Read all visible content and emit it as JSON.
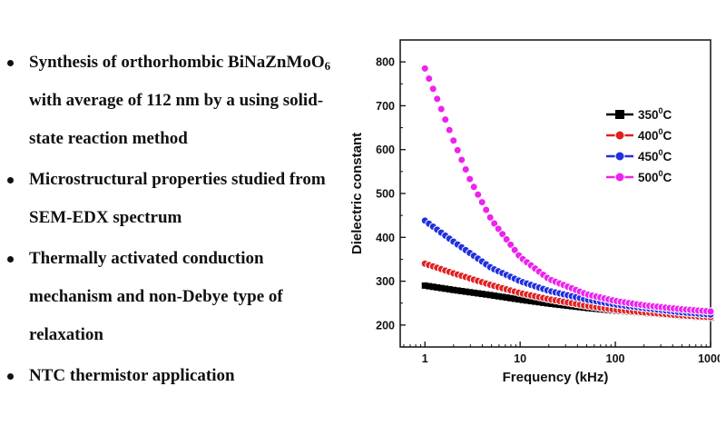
{
  "bullets": [
    {
      "lines": [
        "Synthesis of orthorhombic BiNaZnMoO",
        "with average of 112 nm by a using solid-",
        "state reaction method"
      ],
      "subscript": "6"
    },
    {
      "lines": [
        "Microstructural properties studied from",
        "SEM-EDX spectrum"
      ]
    },
    {
      "lines": [
        "Thermally activated conduction",
        "mechanism and non-Debye type of",
        "relaxation"
      ]
    },
    {
      "lines": [
        "NTC thermistor application"
      ]
    }
  ],
  "chart_data": {
    "type": "scatter",
    "xlabel": "Frequency (kHz)",
    "ylabel": "Dielectric constant",
    "xscale": "log",
    "xlim": [
      0.55,
      1000
    ],
    "ylim": [
      150,
      850
    ],
    "x_ticks": [
      "1",
      "10",
      "100",
      "1000"
    ],
    "y_ticks": [
      "200",
      "300",
      "400",
      "500",
      "600",
      "700",
      "800"
    ],
    "legend_position": "top-right",
    "series": [
      {
        "name": "350",
        "name_sup": "0",
        "name_suffix": "C",
        "color": "#000000",
        "marker": "square",
        "x": [
          1,
          2,
          5,
          10,
          20,
          50,
          100,
          200,
          500,
          1000
        ],
        "y": [
          290,
          280,
          268,
          258,
          249,
          239,
          233,
          228,
          221,
          217
        ]
      },
      {
        "name": "400",
        "name_sup": "0",
        "name_suffix": "C",
        "color": "#e02020",
        "marker": "circle",
        "x": [
          1,
          2,
          5,
          10,
          20,
          50,
          100,
          200,
          500,
          1000
        ],
        "y": [
          340,
          318,
          291,
          273,
          259,
          244,
          235,
          229,
          222,
          218
        ]
      },
      {
        "name": "450",
        "name_sup": "0",
        "name_suffix": "C",
        "color": "#2030e0",
        "marker": "circle",
        "x": [
          1,
          2,
          5,
          10,
          20,
          50,
          100,
          200,
          500,
          1000
        ],
        "y": [
          438,
          390,
          330,
          300,
          278,
          258,
          247,
          239,
          229,
          224
        ]
      },
      {
        "name": "500",
        "name_sup": "0",
        "name_suffix": "C",
        "color": "#ee22ee",
        "marker": "circle",
        "x": [
          1,
          1.5,
          2,
          3,
          5,
          10,
          20,
          50,
          100,
          200,
          500,
          1000
        ],
        "y": [
          785,
          690,
          620,
          530,
          440,
          355,
          305,
          270,
          255,
          245,
          236,
          231
        ]
      }
    ]
  }
}
